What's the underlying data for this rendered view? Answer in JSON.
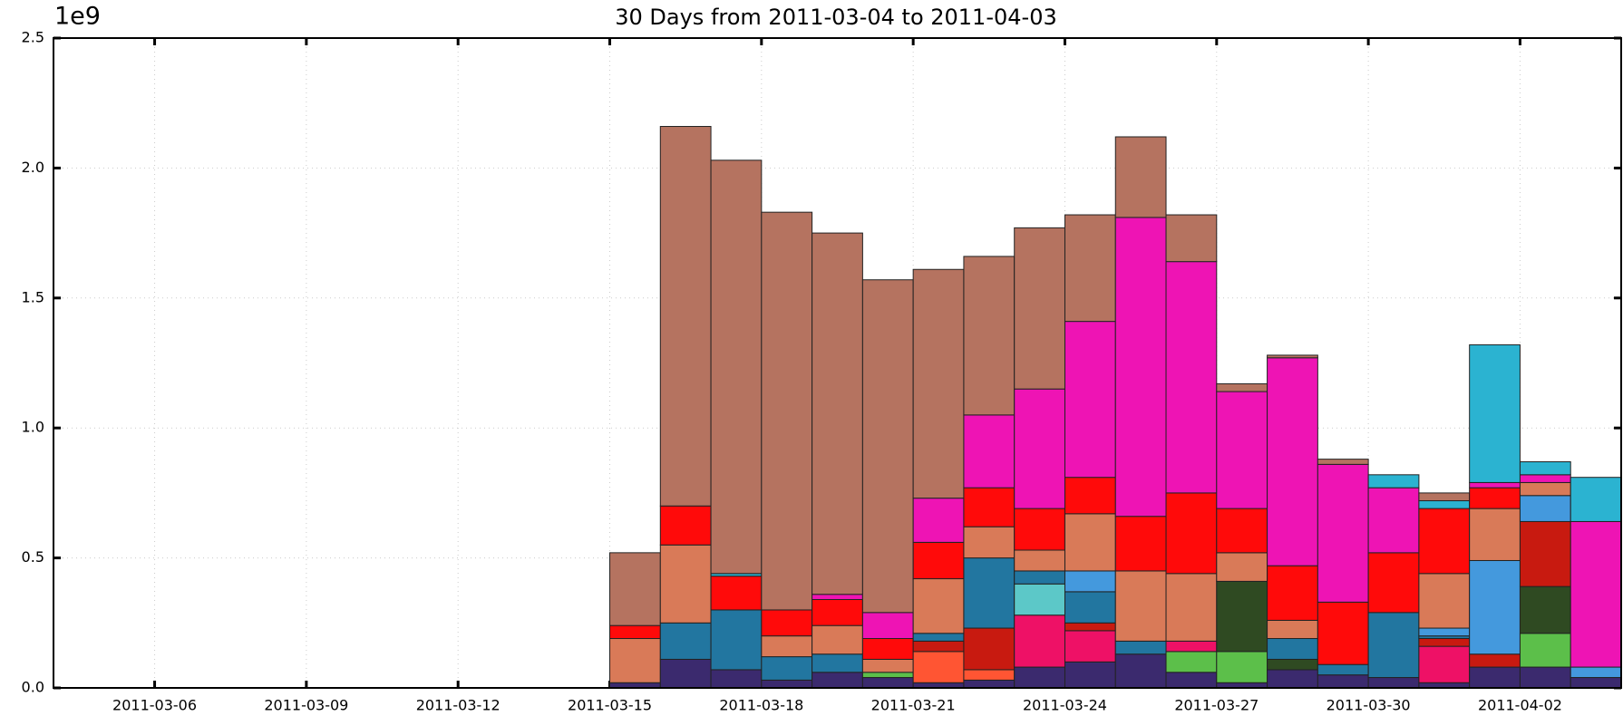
{
  "chart_data": {
    "type": "stacked_bar",
    "subtitle": "30 Days from 2011-03-04 to 2011-04-03",
    "y_multiplier": "1e9",
    "x": [
      "2011-03-15",
      "2011-03-16",
      "2011-03-17",
      "2011-03-18",
      "2011-03-19",
      "2011-03-20",
      "2011-03-21",
      "2011-03-22",
      "2011-03-23",
      "2011-03-24",
      "2011-03-25",
      "2011-03-26",
      "2011-03-27",
      "2011-03-28",
      "2011-03-29",
      "2011-03-30",
      "2011-03-31",
      "2011-04-01",
      "2011-04-02",
      "2011-04-03"
    ],
    "xlim": [
      "2011-03-04",
      "2011-04-04"
    ],
    "xticks": [
      "2011-03-06",
      "2011-03-09",
      "2011-03-12",
      "2011-03-15",
      "2011-03-18",
      "2011-03-21",
      "2011-03-24",
      "2011-03-27",
      "2011-03-30",
      "2011-04-02"
    ],
    "ylim": [
      0,
      2.5
    ],
    "yticks": [
      {
        "value": 0,
        "label": "0.0"
      },
      0.5,
      {
        "value": 1,
        "label": "1.0"
      },
      1.5,
      {
        "value": 2,
        "label": "2.0"
      },
      2.5
    ],
    "grid": true,
    "series": [
      {
        "color": "#3b2a6e",
        "values": [
          0.02,
          0.11,
          0.07,
          0.03,
          0.06,
          0.04,
          0.02,
          0.03,
          0.08,
          0.1,
          0.13,
          0.06,
          0.02,
          0.07,
          0.05,
          0.04,
          0.02,
          0.08,
          0.08,
          0.04
        ]
      },
      {
        "color": "#5cbf4a",
        "values": [
          0,
          0,
          0,
          0,
          0,
          0.02,
          0,
          0,
          0,
          0,
          0,
          0.08,
          0.12,
          0,
          0,
          0,
          0,
          0,
          0.13,
          0
        ]
      },
      {
        "color": "#2f4a22",
        "values": [
          0,
          0,
          0,
          0,
          0,
          0,
          0,
          0,
          0,
          0,
          0,
          0,
          0.27,
          0.04,
          0,
          0,
          0,
          0,
          0.18,
          0
        ]
      },
      {
        "color": "#ff5533",
        "values": [
          0,
          0,
          0,
          0,
          0,
          0,
          0.12,
          0.04,
          0,
          0,
          0,
          0,
          0,
          0,
          0,
          0,
          0,
          0,
          0,
          0
        ]
      },
      {
        "color": "#ee1166",
        "values": [
          0,
          0,
          0,
          0,
          0,
          0,
          0,
          0,
          0.2,
          0.12,
          0,
          0.04,
          0,
          0,
          0,
          0,
          0.14,
          0,
          0,
          0
        ]
      },
      {
        "color": "#5cc8c8",
        "values": [
          0,
          0,
          0,
          0,
          0,
          0,
          0,
          0,
          0.12,
          0,
          0,
          0,
          0,
          0,
          0,
          0,
          0,
          0,
          0,
          0
        ]
      },
      {
        "color": "#c81a10",
        "values": [
          0,
          0,
          0,
          0,
          0,
          0,
          0.04,
          0.16,
          0,
          0.03,
          0,
          0,
          0,
          0,
          0,
          0,
          0.03,
          0.05,
          0.25,
          0
        ]
      },
      {
        "color": "#2276a0",
        "values": [
          0,
          0.14,
          0.23,
          0.09,
          0.07,
          0,
          0.03,
          0.27,
          0.05,
          0.12,
          0.05,
          0,
          0,
          0.08,
          0.04,
          0.25,
          0.01,
          0,
          0,
          0
        ]
      },
      {
        "color": "#4499dd",
        "values": [
          0,
          0,
          0,
          0,
          0,
          0,
          0,
          0,
          0,
          0.08,
          0,
          0,
          0,
          0,
          0,
          0,
          0.03,
          0.36,
          0.1,
          0.04
        ]
      },
      {
        "color": "#d97a58",
        "values": [
          0.17,
          0.3,
          0,
          0.08,
          0.11,
          0.05,
          0.21,
          0.12,
          0.08,
          0.22,
          0.27,
          0.26,
          0.11,
          0.07,
          0,
          0,
          0.21,
          0.2,
          0.05,
          0
        ]
      },
      {
        "color": "#ff0a0a",
        "values": [
          0.05,
          0.15,
          0.13,
          0.1,
          0.1,
          0.08,
          0.14,
          0.15,
          0.16,
          0.14,
          0.21,
          0.31,
          0.17,
          0.21,
          0.24,
          0.23,
          0.25,
          0.08,
          0,
          0
        ]
      },
      {
        "color": "#ee14b4",
        "values": [
          0,
          0,
          0,
          0,
          0.02,
          0.1,
          0.17,
          0.28,
          0.46,
          0.6,
          1.15,
          0.89,
          0.45,
          0.8,
          0.53,
          0.25,
          0,
          0.02,
          0.03,
          0.56
        ]
      },
      {
        "color": "#2bb3d1",
        "values": [
          0,
          0,
          0.01,
          0,
          0,
          0,
          0,
          0,
          0,
          0,
          0,
          0,
          0,
          0,
          0,
          0.05,
          0.03,
          0.53,
          0.05,
          0.17
        ]
      },
      {
        "color": "#b57360",
        "values": [
          0.28,
          1.46,
          1.59,
          1.53,
          1.39,
          1.28,
          0.88,
          0.61,
          0.62,
          0.41,
          0.31,
          0.18,
          0.03,
          0.01,
          0.02,
          0,
          0.03,
          0,
          0,
          0
        ]
      }
    ]
  }
}
